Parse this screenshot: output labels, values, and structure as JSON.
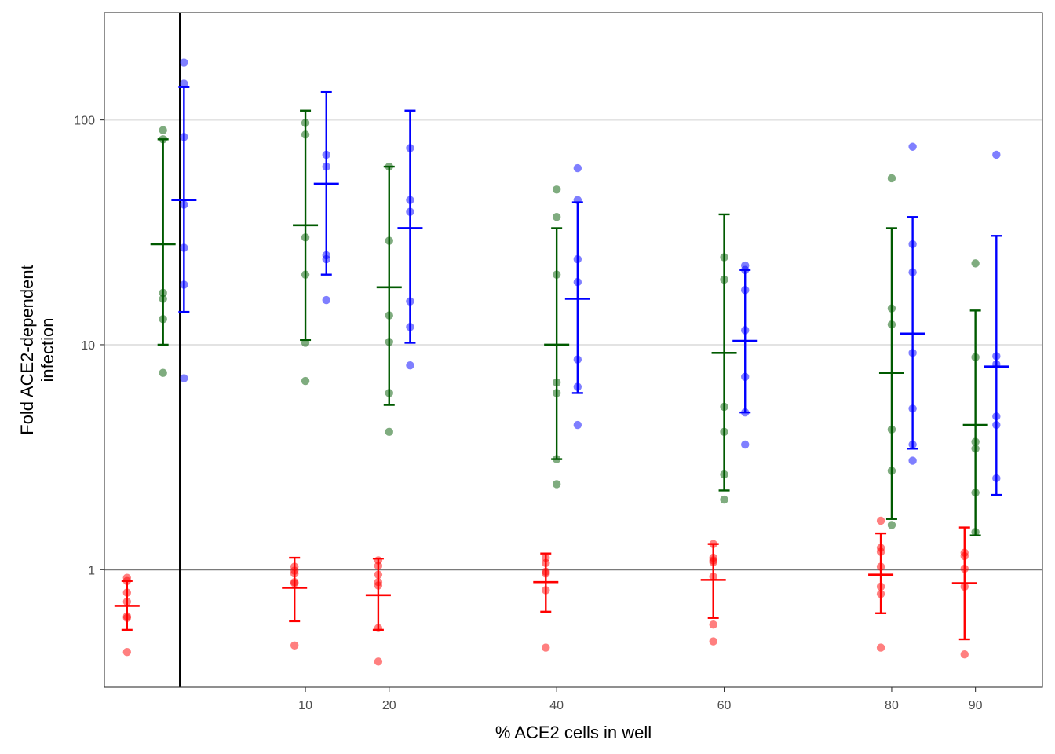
{
  "chart_data": {
    "type": "scatter",
    "title": "",
    "xlabel": "% ACE2 cells in well",
    "ylabel": "Fold ACE2-dependent infection",
    "y_scale": "log10",
    "ylim": [
      0.3,
      300
    ],
    "xlim": [
      -14,
      98
    ],
    "grid": "major y gridlines at 10 and 100",
    "reference_line_y": 1,
    "divider_x": -5,
    "x_ticks": [
      10,
      20,
      40,
      60,
      80,
      90
    ],
    "x_tick_labels": [
      "10",
      "20",
      "40",
      "60",
      "80",
      "90"
    ],
    "y_ticks": [
      1,
      10,
      100
    ],
    "y_tick_labels": [
      "1",
      "10",
      "100"
    ],
    "series": [
      {
        "color": "#ff0000",
        "x_offset": -1.3,
        "groups": [
          {
            "x": -10,
            "points": [
              0.92,
              0.89,
              0.79,
              0.72,
              0.62,
              0.61,
              0.43
            ],
            "mean": 0.69,
            "low": 0.54,
            "high": 0.89
          },
          {
            "x": 10,
            "points": [
              1.03,
              0.99,
              0.96,
              0.88,
              0.87,
              0.46
            ],
            "mean": 0.83,
            "low": 0.59,
            "high": 1.13
          },
          {
            "x": 20,
            "points": [
              1.1,
              1.04,
              0.95,
              0.88,
              0.85,
              0.55,
              0.39
            ],
            "mean": 0.77,
            "low": 0.54,
            "high": 1.12
          },
          {
            "x": 40,
            "points": [
              1.13,
              1.07,
              0.98,
              0.96,
              0.81,
              0.45
            ],
            "mean": 0.88,
            "low": 0.65,
            "high": 1.18
          },
          {
            "x": 60,
            "points": [
              1.3,
              1.13,
              1.1,
              1.08,
              0.93,
              0.57,
              0.48
            ],
            "mean": 0.9,
            "low": 0.61,
            "high": 1.3
          },
          {
            "x": 80,
            "points": [
              1.65,
              1.25,
              1.2,
              1.03,
              0.84,
              0.78,
              0.45
            ],
            "mean": 0.95,
            "low": 0.64,
            "high": 1.45
          },
          {
            "x": 90,
            "points": [
              1.19,
              1.15,
              1.01,
              0.84,
              0.42
            ],
            "mean": 0.87,
            "low": 0.49,
            "high": 1.54
          }
        ]
      },
      {
        "color": "#005a00",
        "x_offset": 0,
        "groups": [
          {
            "x": -7,
            "points": [
              90,
              82,
              17,
              16,
              13,
              7.5
            ],
            "mean": 28,
            "low": 10,
            "high": 82
          },
          {
            "x": 10,
            "points": [
              97,
              86,
              30,
              20.5,
              10.2,
              6.9
            ],
            "mean": 34,
            "low": 10.5,
            "high": 110
          },
          {
            "x": 20,
            "points": [
              62,
              29,
              13.5,
              10.3,
              6.1,
              4.1
            ],
            "mean": 18,
            "low": 5.4,
            "high": 62
          },
          {
            "x": 40,
            "points": [
              49,
              37,
              20.5,
              6.8,
              6.1,
              3.1,
              2.4
            ],
            "mean": 10,
            "low": 3.1,
            "high": 33
          },
          {
            "x": 60,
            "points": [
              24.5,
              19.5,
              5.3,
              4.1,
              2.65,
              2.05
            ],
            "mean": 9.2,
            "low": 2.25,
            "high": 38
          },
          {
            "x": 80,
            "points": [
              55,
              14.5,
              12.3,
              4.2,
              2.75,
              1.58
            ],
            "mean": 7.5,
            "low": 1.68,
            "high": 33
          },
          {
            "x": 90,
            "points": [
              23,
              8.8,
              3.7,
              3.45,
              2.2,
              1.47
            ],
            "mean": 4.4,
            "low": 1.42,
            "high": 14.2
          }
        ]
      },
      {
        "color": "#0000ff",
        "x_offset": 2.5,
        "groups": [
          {
            "x": -7,
            "points": [
              180,
              145,
              84,
              42,
              27,
              18.5,
              7.1
            ],
            "mean": 44,
            "low": 14,
            "high": 140
          },
          {
            "x": 10,
            "points": [
              70,
              62,
              25,
              24,
              15.8
            ],
            "mean": 52,
            "low": 20.5,
            "high": 133
          },
          {
            "x": 20,
            "points": [
              75,
              44,
              39,
              15.6,
              12,
              8.1
            ],
            "mean": 33,
            "low": 10.2,
            "high": 110
          },
          {
            "x": 40,
            "points": [
              61,
              44,
              24,
              19,
              8.6,
              6.5,
              4.4
            ],
            "mean": 16,
            "low": 6.1,
            "high": 43
          },
          {
            "x": 60,
            "points": [
              22.5,
              21.5,
              17.5,
              11.6,
              7.2,
              5,
              3.6
            ],
            "mean": 10.4,
            "low": 5,
            "high": 21.5
          },
          {
            "x": 80,
            "points": [
              76,
              28,
              21,
              9.2,
              5.2,
              3.6,
              3.05
            ],
            "mean": 11.2,
            "low": 3.45,
            "high": 37
          },
          {
            "x": 90,
            "points": [
              70,
              8.9,
              8.2,
              4.8,
              4.4,
              2.55
            ],
            "mean": 8,
            "low": 2.15,
            "high": 30.5
          }
        ]
      }
    ]
  }
}
